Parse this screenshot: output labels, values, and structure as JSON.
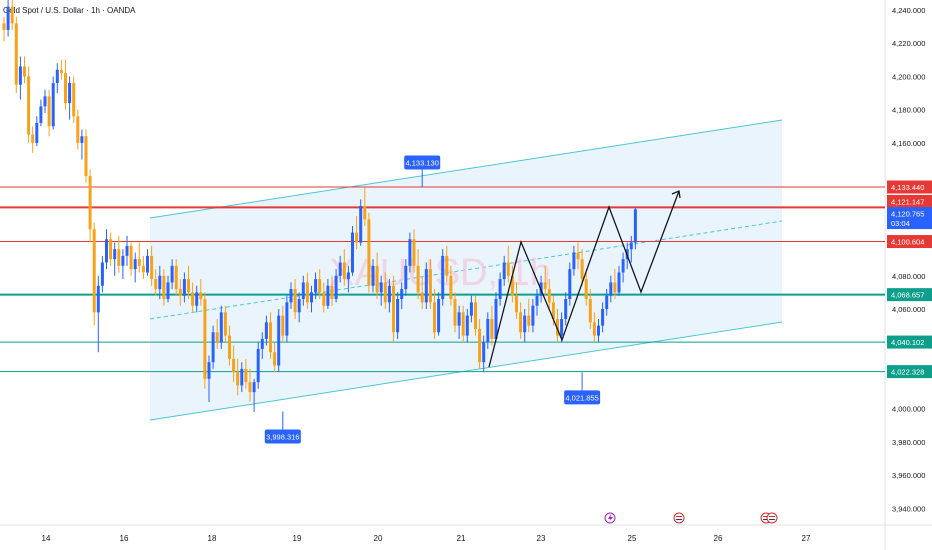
{
  "header": {
    "title": "Gold Spot / U.S. Dollar · 1h · OANDA"
  },
  "watermark": "XAUUSD, 1h",
  "colors": {
    "up": "#2962ff",
    "down": "#f7a21b",
    "channel_fill": "#e3f0fb",
    "channel_line": "#4ac6d8",
    "resistance": "#e53935",
    "support": "#0e9f8c",
    "label_blue": "#2962ff"
  },
  "chart_data": {
    "type": "candlestick",
    "ylim": [
      3930,
      4246
    ],
    "x_ticks": [
      "14",
      "16",
      "18",
      "19",
      "20",
      "21",
      "23",
      "25",
      "26",
      "27"
    ],
    "price_axis_labels": [
      "4,240.000",
      "4,220.000",
      "4,200.000",
      "4,180.000",
      "4,160.000",
      "4,080.000",
      "4,060.000",
      "4,000.000",
      "3,980.000",
      "3,960.000",
      "3,940.000"
    ],
    "price_tags": [
      {
        "value": 4133.44,
        "label": "4,133.440",
        "color": "#e53935"
      },
      {
        "value": 4121.147,
        "label": "4,121.147",
        "color": "#e53935"
      },
      {
        "value": 4120.765,
        "label": "4,120.765",
        "sub": "03:04",
        "color": "#2962ff"
      },
      {
        "value": 4100.604,
        "label": "4,100.604",
        "color": "#e53935"
      },
      {
        "value": 4068.657,
        "label": "4,068.657",
        "color": "#0e9f8c"
      },
      {
        "value": 4040.102,
        "label": "4,040.102",
        "color": "#0e9f8c"
      },
      {
        "value": 4022.328,
        "label": "4,022.328",
        "color": "#0e9f8c"
      }
    ],
    "horizontal_lines": [
      {
        "value": 4133.44,
        "color": "#e53935",
        "width": 1
      },
      {
        "value": 4121.147,
        "color": "#e53935",
        "width": 2
      },
      {
        "value": 4100.604,
        "color": "#e53935",
        "width": 1
      },
      {
        "value": 4068.657,
        "color": "#0e9f8c",
        "width": 2
      },
      {
        "value": 4040.102,
        "color": "#0e9f8c",
        "width": 1
      },
      {
        "value": 4022.328,
        "color": "#0e9f8c",
        "width": 1
      }
    ],
    "callouts": [
      {
        "label": "4,133.130",
        "value": 4133.13,
        "x_index": 102,
        "pos": "above"
      },
      {
        "label": "3,998.316",
        "value": 3998.316,
        "x_index": 68,
        "pos": "below"
      },
      {
        "label": "4,021.855",
        "value": 4021.855,
        "x_index": 141,
        "pos": "below"
      }
    ],
    "candles": [
      [
        4232,
        4236,
        4221,
        4228
      ],
      [
        4228,
        4246,
        4224,
        4242
      ],
      [
        4242,
        4246,
        4228,
        4232
      ],
      [
        4232,
        4236,
        4190,
        4195
      ],
      [
        4195,
        4212,
        4186,
        4206
      ],
      [
        4206,
        4212,
        4196,
        4200
      ],
      [
        4200,
        4206,
        4160,
        4165
      ],
      [
        4165,
        4170,
        4154,
        4160
      ],
      [
        4160,
        4176,
        4158,
        4172
      ],
      [
        4172,
        4186,
        4170,
        4182
      ],
      [
        4182,
        4192,
        4178,
        4188
      ],
      [
        4188,
        4192,
        4164,
        4170
      ],
      [
        4170,
        4200,
        4168,
        4196
      ],
      [
        4196,
        4208,
        4190,
        4204
      ],
      [
        4204,
        4210,
        4198,
        4202
      ],
      [
        4202,
        4210,
        4180,
        4184
      ],
      [
        4184,
        4200,
        4174,
        4196
      ],
      [
        4196,
        4200,
        4172,
        4176
      ],
      [
        4176,
        4180,
        4156,
        4160
      ],
      [
        4160,
        4168,
        4150,
        4164
      ],
      [
        4164,
        4168,
        4136,
        4140
      ],
      [
        4140,
        4144,
        4100,
        4108
      ],
      [
        4108,
        4112,
        4050,
        4058
      ],
      [
        4058,
        4080,
        4034,
        4074
      ],
      [
        4074,
        4092,
        4070,
        4088
      ],
      [
        4088,
        4108,
        4084,
        4102
      ],
      [
        4102,
        4106,
        4086,
        4090
      ],
      [
        4090,
        4100,
        4080,
        4096
      ],
      [
        4096,
        4104,
        4082,
        4086
      ],
      [
        4086,
        4096,
        4078,
        4092
      ],
      [
        4092,
        4104,
        4086,
        4098
      ],
      [
        4098,
        4100,
        4080,
        4084
      ],
      [
        4084,
        4094,
        4076,
        4090
      ],
      [
        4090,
        4100,
        4082,
        4086
      ],
      [
        4086,
        4092,
        4078,
        4082
      ],
      [
        4082,
        4096,
        4080,
        4092
      ],
      [
        4092,
        4098,
        4074,
        4078
      ],
      [
        4078,
        4084,
        4068,
        4072
      ],
      [
        4072,
        4086,
        4066,
        4080
      ],
      [
        4080,
        4084,
        4062,
        4066
      ],
      [
        4066,
        4080,
        4064,
        4076
      ],
      [
        4076,
        4090,
        4072,
        4086
      ],
      [
        4086,
        4090,
        4068,
        4072
      ],
      [
        4072,
        4078,
        4062,
        4068
      ],
      [
        4068,
        4082,
        4064,
        4078
      ],
      [
        4078,
        4086,
        4066,
        4070
      ],
      [
        4070,
        4076,
        4058,
        4062
      ],
      [
        4062,
        4074,
        4058,
        4070
      ],
      [
        4070,
        4078,
        4062,
        4066
      ],
      [
        4066,
        4070,
        4012,
        4018
      ],
      [
        4018,
        4032,
        4004,
        4028
      ],
      [
        4028,
        4050,
        4024,
        4046
      ],
      [
        4046,
        4054,
        4036,
        4040
      ],
      [
        4040,
        4062,
        4036,
        4058
      ],
      [
        4058,
        4062,
        4040,
        4044
      ],
      [
        4044,
        4050,
        4026,
        4030
      ],
      [
        4030,
        4038,
        4016,
        4022
      ],
      [
        4022,
        4030,
        4008,
        4014
      ],
      [
        4014,
        4028,
        4010,
        4024
      ],
      [
        4024,
        4030,
        4012,
        4016
      ],
      [
        4016,
        4024,
        4004,
        4010
      ],
      [
        4010,
        4018,
        3998,
        4016
      ],
      [
        4016,
        4040,
        4012,
        4036
      ],
      [
        4036,
        4046,
        4030,
        4042
      ],
      [
        4042,
        4056,
        4038,
        4052
      ],
      [
        4052,
        4058,
        4030,
        4034
      ],
      [
        4034,
        4040,
        4022,
        4026
      ],
      [
        4026,
        4060,
        4022,
        4056
      ],
      [
        4056,
        4062,
        4040,
        4044
      ],
      [
        4044,
        4068,
        4040,
        4064
      ],
      [
        4064,
        4076,
        4060,
        4072
      ],
      [
        4072,
        4078,
        4054,
        4058
      ],
      [
        4058,
        4070,
        4052,
        4066
      ],
      [
        4066,
        4080,
        4062,
        4076
      ],
      [
        4076,
        4082,
        4060,
        4064
      ],
      [
        4064,
        4074,
        4058,
        4070
      ],
      [
        4070,
        4082,
        4066,
        4078
      ],
      [
        4078,
        4084,
        4066,
        4070
      ],
      [
        4070,
        4076,
        4058,
        4062
      ],
      [
        4062,
        4078,
        4060,
        4074
      ],
      [
        4074,
        4080,
        4062,
        4066
      ],
      [
        4066,
        4084,
        4064,
        4080
      ],
      [
        4080,
        4092,
        4076,
        4088
      ],
      [
        4088,
        4096,
        4074,
        4078
      ],
      [
        4078,
        4086,
        4070,
        4082
      ],
      [
        4082,
        4110,
        4080,
        4106
      ],
      [
        4106,
        4116,
        4096,
        4100
      ],
      [
        4100,
        4126,
        4098,
        4122
      ],
      [
        4122,
        4133,
        4110,
        4114
      ],
      [
        4114,
        4118,
        4070,
        4074
      ],
      [
        4074,
        4090,
        4070,
        4086
      ],
      [
        4086,
        4094,
        4066,
        4070
      ],
      [
        4070,
        4080,
        4062,
        4076
      ],
      [
        4076,
        4082,
        4060,
        4064
      ],
      [
        4064,
        4078,
        4058,
        4074
      ],
      [
        4074,
        4080,
        4040,
        4046
      ],
      [
        4046,
        4070,
        4042,
        4066
      ],
      [
        4066,
        4076,
        4060,
        4072
      ],
      [
        4072,
        4090,
        4068,
        4086
      ],
      [
        4086,
        4106,
        4082,
        4102
      ],
      [
        4102,
        4108,
        4082,
        4086
      ],
      [
        4086,
        4096,
        4066,
        4070
      ],
      [
        4070,
        4080,
        4060,
        4064
      ],
      [
        4064,
        4088,
        4060,
        4084
      ],
      [
        4084,
        4090,
        4060,
        4064
      ],
      [
        4064,
        4072,
        4042,
        4046
      ],
      [
        4046,
        4070,
        4044,
        4066
      ],
      [
        4066,
        4096,
        4062,
        4092
      ],
      [
        4092,
        4098,
        4076,
        4080
      ],
      [
        4080,
        4086,
        4062,
        4066
      ],
      [
        4066,
        4070,
        4046,
        4050
      ],
      [
        4050,
        4062,
        4042,
        4058
      ],
      [
        4058,
        4062,
        4040,
        4044
      ],
      [
        4044,
        4060,
        4040,
        4056
      ],
      [
        4056,
        4068,
        4052,
        4064
      ],
      [
        4064,
        4068,
        4044,
        4048
      ],
      [
        4048,
        4054,
        4024,
        4028
      ],
      [
        4028,
        4044,
        4022,
        4040
      ],
      [
        4040,
        4058,
        4036,
        4054
      ],
      [
        4054,
        4062,
        4038,
        4042
      ],
      [
        4042,
        4070,
        4040,
        4066
      ],
      [
        4066,
        4082,
        4062,
        4078
      ],
      [
        4078,
        4092,
        4074,
        4088
      ],
      [
        4088,
        4098,
        4076,
        4080
      ],
      [
        4080,
        4086,
        4064,
        4068
      ],
      [
        4068,
        4076,
        4054,
        4058
      ],
      [
        4058,
        4064,
        4042,
        4046
      ],
      [
        4046,
        4060,
        4040,
        4056
      ],
      [
        4056,
        4066,
        4046,
        4050
      ],
      [
        4050,
        4066,
        4046,
        4062
      ],
      [
        4062,
        4072,
        4056,
        4068
      ],
      [
        4068,
        4080,
        4064,
        4076
      ],
      [
        4076,
        4086,
        4068,
        4072
      ],
      [
        4072,
        4078,
        4060,
        4064
      ],
      [
        4064,
        4068,
        4050,
        4054
      ],
      [
        4054,
        4060,
        4040,
        4044
      ],
      [
        4044,
        4058,
        4040,
        4054
      ],
      [
        4054,
        4070,
        4050,
        4066
      ],
      [
        4066,
        4088,
        4062,
        4084
      ],
      [
        4084,
        4098,
        4080,
        4094
      ],
      [
        4094,
        4100,
        4084,
        4090
      ],
      [
        4090,
        4096,
        4074,
        4078
      ],
      [
        4078,
        4084,
        4062,
        4066
      ],
      [
        4066,
        4072,
        4048,
        4052
      ],
      [
        4052,
        4058,
        4040,
        4044
      ],
      [
        4044,
        4054,
        4040,
        4050
      ],
      [
        4050,
        4064,
        4046,
        4060
      ],
      [
        4060,
        4072,
        4056,
        4068
      ],
      [
        4068,
        4080,
        4064,
        4076
      ],
      [
        4076,
        4084,
        4066,
        4070
      ],
      [
        4070,
        4086,
        4068,
        4082
      ],
      [
        4082,
        4094,
        4076,
        4090
      ],
      [
        4090,
        4100,
        4084,
        4096
      ],
      [
        4096,
        4104,
        4088,
        4100
      ],
      [
        4100,
        4121,
        4096,
        4120
      ]
    ]
  }
}
